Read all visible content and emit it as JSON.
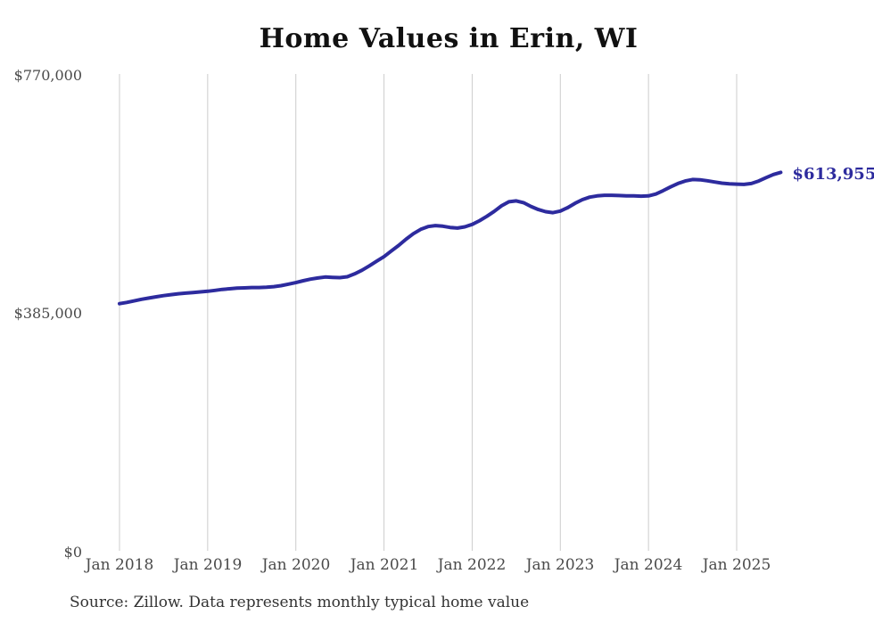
{
  "title": "Home Values in Erin, WI",
  "source_note": "Source: Zillow. Data represents monthly typical home value",
  "annotation": {
    "last_value_label": "$613,955"
  },
  "colors": {
    "line": "#2d2b9e",
    "annotation_text": "#2d2b9e",
    "gridline": "#cccccc",
    "axis_text": "#4a4a4a",
    "title_text": "#111111",
    "source_text": "#333333",
    "background": "#ffffff"
  },
  "y_axis": {
    "ticks": [
      {
        "label": "$770,000",
        "value": 770000
      },
      {
        "label": "$385,000",
        "value": 385000
      },
      {
        "label": "$0",
        "value": 0
      }
    ]
  },
  "x_axis": {
    "ticks": [
      "Jan 2018",
      "Jan 2019",
      "Jan 2020",
      "Jan 2021",
      "Jan 2022",
      "Jan 2023",
      "Jan 2024",
      "Jan 2025"
    ]
  },
  "chart_data": {
    "type": "line",
    "title": "Home Values in Erin, WI",
    "xlabel": "",
    "ylabel": "",
    "ylim": [
      0,
      770000
    ],
    "y_ticks": [
      0,
      385000,
      770000
    ],
    "x_tick_labels": [
      "Jan 2018",
      "Jan 2019",
      "Jan 2020",
      "Jan 2021",
      "Jan 2022",
      "Jan 2023",
      "Jan 2024",
      "Jan 2025"
    ],
    "grid": "vertical-only",
    "legend": "none",
    "interval": "monthly",
    "x": [
      "2018-01",
      "2018-02",
      "2018-03",
      "2018-04",
      "2018-05",
      "2018-06",
      "2018-07",
      "2018-08",
      "2018-09",
      "2018-10",
      "2018-11",
      "2018-12",
      "2019-01",
      "2019-02",
      "2019-03",
      "2019-04",
      "2019-05",
      "2019-06",
      "2019-07",
      "2019-08",
      "2019-09",
      "2019-10",
      "2019-11",
      "2019-12",
      "2020-01",
      "2020-02",
      "2020-03",
      "2020-04",
      "2020-05",
      "2020-06",
      "2020-07",
      "2020-08",
      "2020-09",
      "2020-10",
      "2020-11",
      "2020-12",
      "2021-01",
      "2021-02",
      "2021-03",
      "2021-04",
      "2021-05",
      "2021-06",
      "2021-07",
      "2021-08",
      "2021-09",
      "2021-10",
      "2021-11",
      "2021-12",
      "2022-01",
      "2022-02",
      "2022-03",
      "2022-04",
      "2022-05",
      "2022-06",
      "2022-07",
      "2022-08",
      "2022-09",
      "2022-10",
      "2022-11",
      "2022-12",
      "2023-01",
      "2023-02",
      "2023-03",
      "2023-04",
      "2023-05",
      "2023-06",
      "2023-07",
      "2023-08",
      "2023-09",
      "2023-10",
      "2023-11",
      "2023-12",
      "2024-01",
      "2024-02",
      "2024-03",
      "2024-04",
      "2024-05",
      "2024-06",
      "2024-07",
      "2024-08",
      "2024-09",
      "2024-10",
      "2024-11",
      "2024-12",
      "2025-01",
      "2025-02",
      "2025-03",
      "2025-04",
      "2025-05",
      "2025-06",
      "2025-07"
    ],
    "series": [
      {
        "name": "Typical home value",
        "values": [
          402000,
          404000,
          406500,
          409000,
          411000,
          413000,
          415000,
          416500,
          418000,
          419000,
          420000,
          421000,
          422000,
          423500,
          425000,
          426000,
          427000,
          427500,
          428000,
          428000,
          428500,
          429500,
          431000,
          433500,
          436000,
          439000,
          441500,
          443500,
          445000,
          444500,
          444000,
          445500,
          450000,
          456000,
          463000,
          470500,
          478000,
          487000,
          496000,
          506000,
          515000,
          522000,
          526500,
          528000,
          527000,
          525000,
          524000,
          526000,
          530000,
          536000,
          543000,
          551000,
          560000,
          566500,
          568000,
          565000,
          559000,
          554000,
          550500,
          549000,
          551500,
          557000,
          564000,
          570000,
          574000,
          576000,
          577000,
          577000,
          576500,
          576000,
          576000,
          575500,
          576000,
          579000,
          584500,
          590500,
          596000,
          600000,
          602500,
          602000,
          600500,
          598500,
          596500,
          595500,
          595000,
          594500,
          596000,
          600000,
          605500,
          610500,
          613955
        ]
      }
    ],
    "final_value": 613955,
    "final_value_label": "$613,955"
  },
  "layout_labels": {
    "x_tick_0": "Jan 2018",
    "x_tick_1": "Jan 2019",
    "x_tick_2": "Jan 2020",
    "x_tick_3": "Jan 2021",
    "x_tick_4": "Jan 2022",
    "x_tick_5": "Jan 2023",
    "x_tick_6": "Jan 2024",
    "x_tick_7": "Jan 2025"
  }
}
